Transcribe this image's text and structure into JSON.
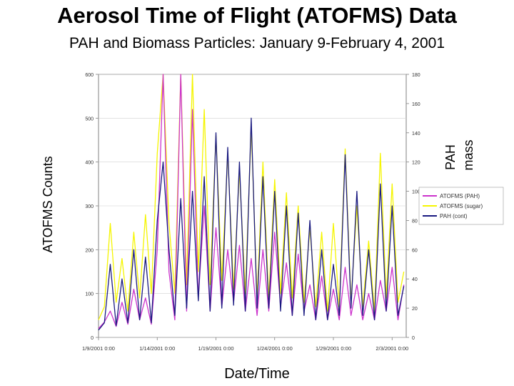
{
  "title": "Aerosol Time of Flight (ATOFMS) Data",
  "subtitle": "PAH and Biomass Particles: January 9-February 4, 2001",
  "chart_data": {
    "type": "line",
    "xlabel": "Date/Time",
    "ylabel_left": "ATOFMS Counts",
    "ylabel_right_line1": "PAH",
    "ylabel_right_line2": "mass",
    "x_ticks": [
      "1/9/2001 0:00",
      "1/14/2001 0:00",
      "1/19/2001 0:00",
      "1/24/2001 0:00",
      "1/29/2001 0:00",
      "2/3/2001 0:00"
    ],
    "x_tick_days": [
      0,
      5,
      10,
      15,
      20,
      25
    ],
    "x_range_days": [
      0,
      26.2
    ],
    "ylim_left": [
      0,
      600
    ],
    "yticks_left": [
      0,
      100,
      200,
      300,
      400,
      500,
      600
    ],
    "ylim_right": [
      0,
      180
    ],
    "yticks_right": [
      0,
      20,
      40,
      60,
      80,
      100,
      120,
      140,
      160,
      180
    ],
    "series": [
      {
        "name": "ATOFMS (PAH)",
        "axis": "left",
        "color": "#cc33cc",
        "x_days": [
          0.0,
          0.5,
          1.0,
          1.5,
          2.0,
          2.5,
          3.0,
          3.5,
          4.0,
          4.5,
          5.0,
          5.5,
          6.0,
          6.5,
          7.0,
          7.5,
          8.0,
          8.5,
          9.0,
          9.5,
          10.0,
          10.5,
          11.0,
          11.5,
          12.0,
          12.5,
          13.0,
          13.5,
          14.0,
          14.5,
          15.0,
          15.5,
          16.0,
          16.5,
          17.0,
          17.5,
          18.0,
          18.5,
          19.0,
          19.5,
          20.0,
          20.5,
          21.0,
          21.5,
          22.0,
          22.5,
          23.0,
          23.5,
          24.0,
          24.5,
          25.0,
          25.5,
          26.0
        ],
        "values": [
          20,
          35,
          60,
          25,
          80,
          30,
          110,
          40,
          90,
          30,
          200,
          600,
          150,
          40,
          600,
          60,
          520,
          90,
          300,
          60,
          250,
          70,
          200,
          80,
          210,
          60,
          180,
          50,
          200,
          60,
          240,
          70,
          170,
          50,
          190,
          60,
          120,
          40,
          140,
          40,
          110,
          40,
          160,
          50,
          120,
          40,
          100,
          40,
          130,
          60,
          160,
          40,
          120
        ]
      },
      {
        "name": "ATOFMS (sugar)",
        "axis": "left",
        "color": "#f5f500",
        "x_days": [
          0.0,
          0.5,
          1.0,
          1.5,
          2.0,
          2.5,
          3.0,
          3.5,
          4.0,
          4.5,
          5.0,
          5.5,
          6.0,
          6.5,
          7.0,
          7.5,
          8.0,
          8.5,
          9.0,
          9.5,
          10.0,
          10.5,
          11.0,
          11.5,
          12.0,
          12.5,
          13.0,
          13.5,
          14.0,
          14.5,
          15.0,
          15.5,
          16.0,
          16.5,
          17.0,
          17.5,
          18.0,
          18.5,
          19.0,
          19.5,
          20.0,
          20.5,
          21.0,
          21.5,
          22.0,
          22.5,
          23.0,
          23.5,
          24.0,
          24.5,
          25.0,
          25.5,
          26.0
        ],
        "values": [
          40,
          70,
          260,
          80,
          180,
          60,
          240,
          90,
          280,
          100,
          420,
          600,
          260,
          100,
          600,
          120,
          600,
          150,
          520,
          120,
          460,
          130,
          420,
          110,
          380,
          100,
          480,
          90,
          400,
          90,
          360,
          100,
          330,
          90,
          300,
          80,
          250,
          70,
          240,
          60,
          260,
          70,
          430,
          80,
          300,
          70,
          220,
          60,
          420,
          90,
          350,
          80,
          150
        ]
      },
      {
        "name": "PAH (cont)",
        "axis": "right",
        "color": "#1a1a80",
        "x_days": [
          0.0,
          0.5,
          1.0,
          1.5,
          2.0,
          2.5,
          3.0,
          3.5,
          4.0,
          4.5,
          5.0,
          5.5,
          6.0,
          6.5,
          7.0,
          7.5,
          8.0,
          8.5,
          9.0,
          9.5,
          10.0,
          10.5,
          11.0,
          11.5,
          12.0,
          12.5,
          13.0,
          13.5,
          14.0,
          14.5,
          15.0,
          15.5,
          16.0,
          16.5,
          17.0,
          17.5,
          18.0,
          18.5,
          19.0,
          19.5,
          20.0,
          20.5,
          21.0,
          21.5,
          22.0,
          22.5,
          23.0,
          23.5,
          24.0,
          24.5,
          25.0,
          25.5,
          26.0
        ],
        "values": [
          5,
          10,
          50,
          8,
          40,
          10,
          60,
          12,
          55,
          10,
          80,
          120,
          60,
          15,
          95,
          20,
          100,
          25,
          110,
          18,
          140,
          20,
          130,
          22,
          120,
          18,
          150,
          20,
          110,
          20,
          100,
          18,
          90,
          15,
          85,
          15,
          80,
          12,
          60,
          12,
          50,
          15,
          125,
          20,
          100,
          15,
          60,
          12,
          105,
          18,
          90,
          15,
          35
        ]
      }
    ]
  }
}
